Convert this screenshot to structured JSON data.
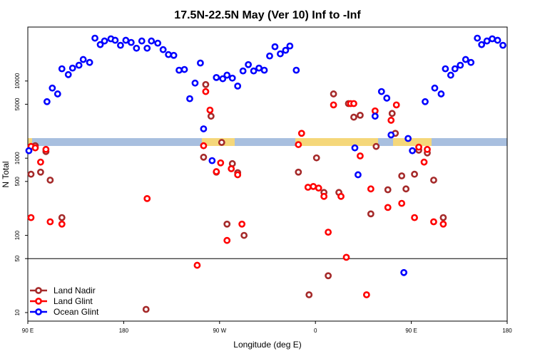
{
  "chart_data": {
    "type": "scatter",
    "title": "17.5N-22.5N May (Ver 10)   Inf to -Inf",
    "xlabel": "Longitude (deg E)",
    "ylabel": "N Total",
    "xlim": [
      90,
      540
    ],
    "ylim": [
      7.75,
      50000
    ],
    "ylog": true,
    "xticks": [
      {
        "value": 90,
        "label": "90 E"
      },
      180,
      {
        "value": 270,
        "label": "90 W"
      },
      {
        "value": 360,
        "label": "0"
      },
      {
        "value": 450,
        "label": "90 E"
      },
      {
        "value": 540,
        "label": "180"
      }
    ],
    "yticks": [
      10,
      50,
      100,
      500,
      1000,
      5000,
      10000
    ],
    "hline": 50,
    "legend": "bottom-left",
    "series": [
      {
        "name": "Land Nadir",
        "color": "#a52a2a",
        "x": [
          93,
          97,
          102,
          107,
          111,
          122,
          201,
          255,
          257,
          262,
          267,
          272,
          277,
          282,
          287,
          293,
          344,
          354,
          361,
          368,
          372,
          377,
          382,
          391,
          396,
          402,
          412,
          417,
          428,
          432,
          435,
          441,
          445,
          453,
          457,
          465,
          471,
          480
        ],
        "values": [
          620,
          1450,
          660,
          1220,
          520,
          170,
          11,
          1030,
          9000,
          3500,
          660,
          1600,
          140,
          850,
          650,
          100,
          660,
          17,
          1010,
          360,
          30,
          6800,
          360,
          5100,
          3400,
          3600,
          190,
          1420,
          390,
          3800,
          2100,
          590,
          400,
          620,
          1270,
          1170,
          520,
          170
        ]
      },
      {
        "name": "Land Glint",
        "color": "#ff0000",
        "x": [
          93,
          93,
          97,
          102,
          107,
          111,
          122,
          202,
          249,
          255,
          257,
          261,
          267,
          271,
          277,
          281,
          287,
          291,
          344,
          347,
          353,
          358,
          363,
          368,
          372,
          377,
          384,
          389,
          393,
          396,
          402,
          408,
          412,
          416,
          428,
          431,
          436,
          441,
          453,
          457,
          462,
          465,
          471,
          480
        ],
        "values": [
          1420,
          170,
          1360,
          890,
          1300,
          150,
          140,
          300,
          41,
          1450,
          7300,
          4200,
          670,
          870,
          86,
          730,
          610,
          140,
          1500,
          2100,
          420,
          430,
          410,
          320,
          110,
          4900,
          320,
          52,
          5100,
          5100,
          1070,
          17,
          400,
          4100,
          230,
          3100,
          4900,
          260,
          170,
          1390,
          890,
          1300,
          150,
          140
        ]
      },
      {
        "name": "Ocean Glint",
        "color": "#0000ff",
        "x": [
          91,
          108,
          113,
          118,
          122,
          128,
          132,
          138,
          142,
          148,
          153,
          158,
          162,
          168,
          172,
          177,
          182,
          187,
          192,
          197,
          202,
          206,
          212,
          217,
          222,
          227,
          232,
          237,
          242,
          247,
          252,
          255,
          263,
          267,
          273,
          277,
          282,
          287,
          292,
          297,
          302,
          307,
          312,
          317,
          322,
          327,
          332,
          336,
          342,
          397,
          400,
          416,
          422,
          427,
          431,
          447,
          451,
          463,
          472,
          478,
          482,
          487,
          491,
          496,
          501,
          506,
          512,
          516,
          521,
          526,
          531,
          536,
          443
        ],
        "values": [
          1250,
          5400,
          8100,
          6800,
          14400,
          12100,
          14700,
          16000,
          19000,
          17400,
          35900,
          29600,
          33000,
          35200,
          33700,
          29000,
          33700,
          31600,
          26600,
          33000,
          26600,
          33000,
          30900,
          25500,
          22000,
          21500,
          13800,
          14100,
          5900,
          9400,
          17100,
          2400,
          930,
          11100,
          10700,
          11900,
          10900,
          8600,
          13500,
          16300,
          13500,
          14700,
          13800,
          21100,
          27800,
          22500,
          25000,
          28400,
          13800,
          1360,
          610,
          3500,
          7300,
          6000,
          2000,
          1800,
          1250,
          5400,
          8100,
          6800,
          14400,
          11900,
          14400,
          16000,
          19000,
          17400,
          35900,
          29600,
          33000,
          35200,
          33700,
          29000,
          33
        ]
      }
    ]
  }
}
